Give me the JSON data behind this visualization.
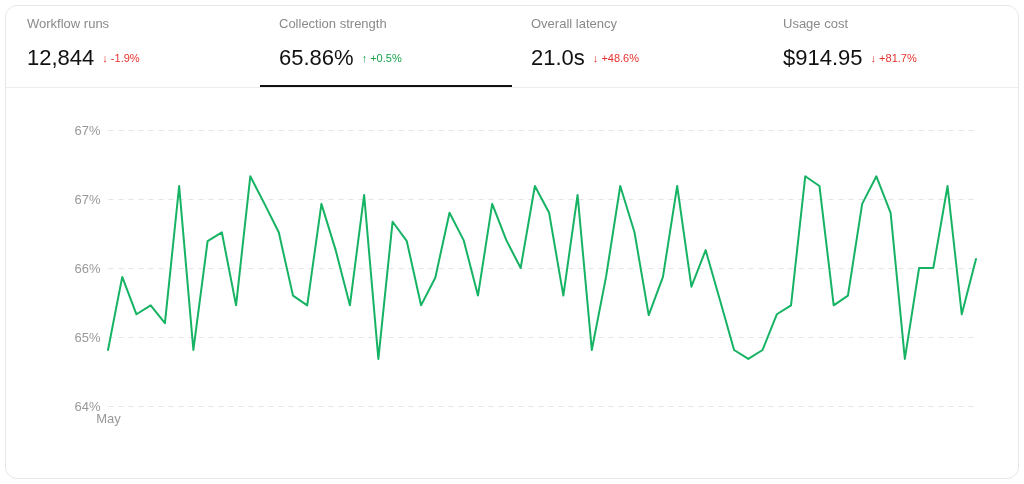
{
  "chart_data": [
    {
      "type": "other",
      "annotations": [
        "Workflow runs",
        "12,844",
        "↓ -1.9%",
        "Collection strength",
        "65.86%",
        "↑ +0.5%",
        "Overall latency",
        "21.0s",
        "↓ +48.6%",
        "Usage cost",
        "$914.95",
        "↓ +81.7%"
      ],
      "colors": [
        "#e5322d",
        "#16a34a",
        "#e5322d",
        "#e5322d"
      ]
    },
    {
      "type": "line",
      "categories": [
        "May",
        null,
        null,
        null,
        null,
        null,
        null,
        null,
        null,
        null,
        null,
        null,
        null,
        null,
        null,
        null,
        null,
        null,
        null,
        null,
        null,
        null,
        null,
        null,
        null,
        null,
        null,
        null,
        null,
        null,
        null,
        null,
        null,
        null,
        null,
        null,
        null,
        null,
        null,
        null,
        null,
        null,
        null,
        null,
        null,
        null,
        null,
        null,
        null,
        null,
        null,
        null,
        null,
        null,
        null,
        null,
        null,
        null,
        null,
        null,
        null,
        null
      ],
      "series": [
        {
          "color": "#16b364",
          "values": [
            64.69,
            65.59,
            65.13,
            65.24,
            65.02,
            66.71,
            64.69,
            66.03,
            66.14,
            65.24,
            66.83,
            66.49,
            66.14,
            65.36,
            65.24,
            66.49,
            65.92,
            65.24,
            66.6,
            64.58,
            66.27,
            66.03,
            65.24,
            65.58,
            66.38,
            66.04,
            65.36,
            66.49,
            66.04,
            65.7,
            66.71,
            66.38,
            65.36,
            66.6,
            64.69,
            65.59,
            66.71,
            66.14,
            65.12,
            65.59,
            66.71,
            65.47,
            65.92,
            65.31,
            64.69,
            64.58,
            64.69,
            65.13,
            65.24,
            66.83,
            66.71,
            65.24,
            65.36,
            66.49,
            66.83,
            66.38,
            64.58,
            65.7,
            65.7,
            66.71,
            65.13,
            65.81
          ]
        }
      ],
      "ylim": [
        64,
        67.4
      ],
      "yticks": [
        {
          "value": 64,
          "label": "64%"
        },
        {
          "value": 64.85,
          "label": "65%"
        },
        {
          "value": 65.7,
          "label": "66%"
        },
        {
          "value": 66.55,
          "label": "67%"
        },
        {
          "value": 67.4,
          "label": "67%"
        }
      ],
      "grid": "y",
      "line_style": "solid"
    }
  ]
}
